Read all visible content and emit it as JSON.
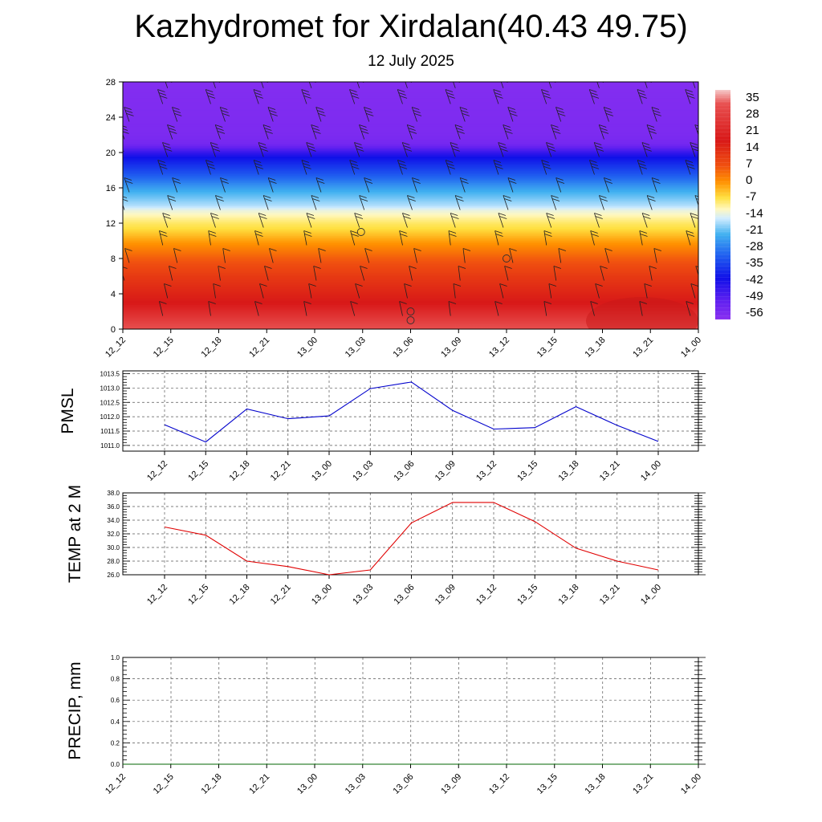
{
  "title": "Kazhydromet for Xirdalan(40.43 49.75)",
  "subtitle": "12 July 2025",
  "colors": {
    "pmsl_line": "#0000cc",
    "temp_line": "#e00000",
    "precip_line": "#006400"
  },
  "chart_data": [
    {
      "type": "heatmap",
      "x": [
        "12_12",
        "12_15",
        "12_18",
        "12_21",
        "13_00",
        "13_03",
        "13_06",
        "13_09",
        "13_12",
        "13_15",
        "13_18",
        "13_21",
        "14_00"
      ],
      "yticks": [
        0,
        4,
        8,
        12,
        16,
        20,
        24,
        28
      ],
      "ylim": [
        0,
        28
      ],
      "grid": false,
      "colorbar": {
        "labels": [
          "35",
          "28",
          "21",
          "14",
          "7",
          "0",
          "-7",
          "-14",
          "-21",
          "-28",
          "-35",
          "-42",
          "-49",
          "-56"
        ],
        "placement": "right"
      },
      "profile": [
        {
          "level": 0,
          "value": 30
        },
        {
          "level": 2,
          "value": 26
        },
        {
          "level": 4,
          "value": 22
        },
        {
          "level": 6,
          "value": 18
        },
        {
          "level": 8,
          "value": 13
        },
        {
          "level": 10,
          "value": 7
        },
        {
          "level": 12,
          "value": 0
        },
        {
          "level": 13.5,
          "value": -9
        },
        {
          "level": 14,
          "value": -14
        },
        {
          "level": 16,
          "value": -24
        },
        {
          "level": 18,
          "value": -36
        },
        {
          "level": 20,
          "value": -48
        },
        {
          "level": 21,
          "value": -55
        },
        {
          "level": 22,
          "value": -56
        },
        {
          "level": 28,
          "value": -57
        }
      ]
    },
    {
      "type": "line",
      "ylabel": "PMSL",
      "x": [
        "12_12",
        "12_15",
        "12_18",
        "12_21",
        "13_00",
        "13_03",
        "13_06",
        "13_09",
        "13_12",
        "13_15",
        "13_18",
        "13_21",
        "14_00"
      ],
      "yticks": [
        "1011.0",
        "1011.5",
        "1012.0",
        "1012.5",
        "1013.0",
        "1013.5"
      ],
      "ylim": [
        1010.8,
        1013.6
      ],
      "grid": true,
      "series": [
        {
          "values": [
            1011.72,
            1011.12,
            1012.27,
            1011.93,
            1012.03,
            1012.98,
            1013.21,
            1012.22,
            1011.57,
            1011.62,
            1012.35,
            1011.7,
            1011.14
          ]
        }
      ]
    },
    {
      "type": "line",
      "ylabel": "TEMP at 2 M",
      "x": [
        "12_12",
        "12_15",
        "12_18",
        "12_21",
        "13_00",
        "13_03",
        "13_06",
        "13_09",
        "13_12",
        "13_15",
        "13_18",
        "13_21",
        "14_00"
      ],
      "yticks": [
        "26.0",
        "28.0",
        "30.0",
        "32.0",
        "34.0",
        "36.0",
        "38.0"
      ],
      "ylim": [
        26,
        38
      ],
      "grid": true,
      "series": [
        {
          "values": [
            33.0,
            31.8,
            28.0,
            27.2,
            26.0,
            26.7,
            33.6,
            36.6,
            36.6,
            33.8,
            29.9,
            28.0,
            26.7
          ]
        }
      ]
    },
    {
      "type": "line",
      "ylabel": "PRECIP, mm",
      "x": [
        "12_12",
        "12_15",
        "12_18",
        "12_21",
        "13_00",
        "13_03",
        "13_06",
        "13_09",
        "13_12",
        "13_15",
        "13_18",
        "13_21",
        "14_00"
      ],
      "yticks": [
        "0.0",
        "0.2",
        "0.4",
        "0.6",
        "0.8",
        "1.0"
      ],
      "ylim": [
        0,
        1
      ],
      "grid": true,
      "series": [
        {
          "values": [
            0,
            0,
            0,
            0,
            0,
            0,
            0,
            0,
            0,
            0,
            0,
            0,
            0
          ]
        }
      ]
    }
  ]
}
